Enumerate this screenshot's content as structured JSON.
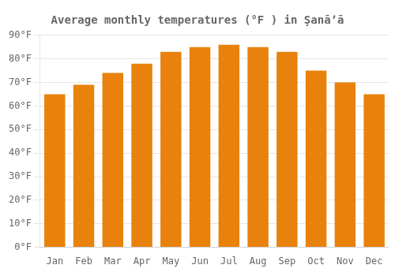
{
  "chart_data": {
    "type": "bar",
    "title": "Average monthly temperatures (°F ) in Şanāʼā",
    "categories": [
      "Jan",
      "Feb",
      "Mar",
      "Apr",
      "May",
      "Jun",
      "Jul",
      "Aug",
      "Sep",
      "Oct",
      "Nov",
      "Dec"
    ],
    "values": [
      65,
      69,
      74,
      78,
      83,
      85,
      86,
      85,
      83,
      75,
      70,
      65
    ],
    "color": "#E8820C",
    "ylim": [
      0,
      90
    ],
    "yticks": [
      {
        "value": 0,
        "label": "0°F"
      },
      {
        "value": 10,
        "label": "10°F"
      },
      {
        "value": 20,
        "label": "20°F"
      },
      {
        "value": 30,
        "label": "30°F"
      },
      {
        "value": 40,
        "label": "40°F"
      },
      {
        "value": 50,
        "label": "50°F"
      },
      {
        "value": 60,
        "label": "60°F"
      },
      {
        "value": 70,
        "label": "70°F"
      },
      {
        "value": 80,
        "label": "80°F"
      },
      {
        "value": 90,
        "label": "90°F"
      }
    ],
    "grid": true
  }
}
